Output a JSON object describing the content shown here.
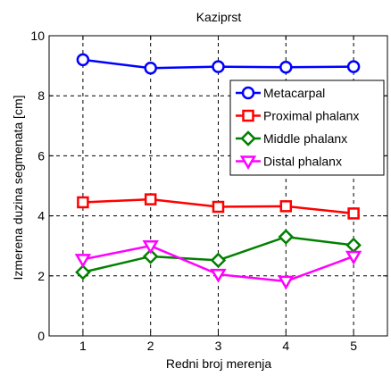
{
  "chart_data": {
    "type": "line",
    "title": "Kaziprst",
    "xlabel": "Redni broj merenja",
    "ylabel": "Izmerena duzina segmenata [cm]",
    "x": [
      1,
      2,
      3,
      4,
      5
    ],
    "xlim": [
      0.5,
      5.5
    ],
    "ylim": [
      0,
      10
    ],
    "xticks": [
      1,
      2,
      3,
      4,
      5
    ],
    "yticks": [
      0,
      2,
      4,
      6,
      8,
      10
    ],
    "grid": true,
    "legend_position": "top-right",
    "series": [
      {
        "name": "Metacarpal",
        "values": [
          9.2,
          8.92,
          8.97,
          8.95,
          8.97
        ],
        "color": "#0000ff",
        "marker": "circle"
      },
      {
        "name": "Proximal phalanx",
        "values": [
          4.45,
          4.55,
          4.3,
          4.32,
          4.08
        ],
        "color": "#ff0000",
        "marker": "square"
      },
      {
        "name": "Middle phalanx",
        "values": [
          2.12,
          2.65,
          2.52,
          3.3,
          3.02
        ],
        "color": "#008000",
        "marker": "diamond"
      },
      {
        "name": "Distal phalanx",
        "values": [
          2.55,
          3.0,
          2.05,
          1.82,
          2.65
        ],
        "color": "#ff00ff",
        "marker": "triangle-down"
      }
    ]
  }
}
